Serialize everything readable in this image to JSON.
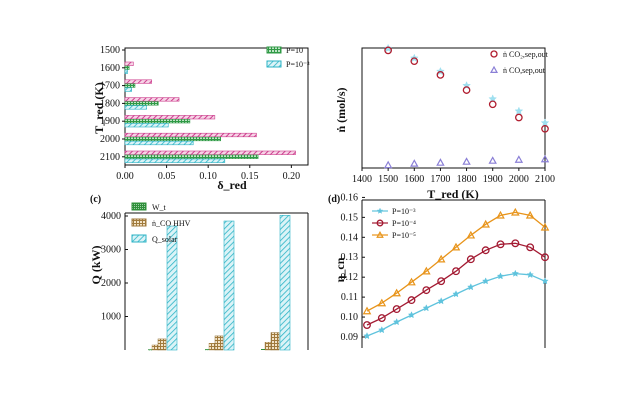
{
  "chart_data": [
    {
      "panel": "",
      "type": "bar",
      "orientation": "horizontal",
      "categories": [
        "1500",
        "1600",
        "1700",
        "1800",
        "1900",
        "2000",
        "2100"
      ],
      "ylabel": "T_red (K)",
      "xlabel": "δ_red",
      "xlim": [
        0,
        0.22
      ],
      "xticks": [
        "0.00",
        "0.05",
        "0.10",
        "0.15",
        "0.20"
      ],
      "colors": {
        "pink": "#cc3f8e",
        "green": "#2f9a45",
        "cyan": "#2bb3c6"
      },
      "series": [
        {
          "name": "P=10",
          "values": [
            0.0,
            0.005,
            0.012,
            0.04,
            0.078,
            0.115,
            0.16
          ]
        },
        {
          "name": "P=10⁻³",
          "values": [
            0.0,
            0.003,
            0.008,
            0.026,
            0.052,
            0.082,
            0.12
          ]
        },
        {
          "values": [
            0.0,
            0.01,
            0.032,
            0.065,
            0.108,
            0.158,
            0.205
          ]
        }
      ],
      "legend_position": "top-right"
    },
    {
      "panel": "",
      "type": "scatter",
      "xlabel": "T_red (K)",
      "ylabel": "ṅ (mol/s)",
      "xlim": [
        1400,
        2100
      ],
      "xticks": [
        "1400",
        "1500",
        "1600",
        "1700",
        "1800",
        "1900",
        "2000",
        "2100"
      ],
      "series": [
        {
          "name": "ṅ CO₂,sep,out",
          "marker": "circle",
          "color": "#b01c2e",
          "x": [
            1500,
            1600,
            1700,
            1800,
            1900,
            2000,
            2100
          ],
          "y": [
            24.0,
            21.8,
            19.0,
            15.9,
            13.0,
            10.3,
            8.0
          ]
        },
        {
          "name": "ṅ CO,sep,out",
          "marker": "triangle",
          "color": "#8a7fd6",
          "x": [
            1500,
            1600,
            1700,
            1800,
            1900,
            2000,
            2100
          ],
          "y": [
            0.6,
            0.9,
            1.1,
            1.3,
            1.5,
            1.7,
            1.8
          ]
        },
        {
          "marker": "star",
          "color": "#9fe0f0",
          "x": [
            1500,
            1600,
            1700,
            1800,
            1900,
            2000,
            2100
          ],
          "y": [
            24.4,
            22.4,
            19.7,
            16.8,
            14.1,
            11.6,
            9.2
          ]
        }
      ],
      "legend_position": "top-right"
    },
    {
      "panel": "(c)",
      "type": "bar",
      "ylabel": "Q (kW)",
      "ylim": [
        0,
        4200
      ],
      "yticks": [
        "1000",
        "2000",
        "3000",
        "4000"
      ],
      "colors": {
        "Wt": "#2f8f3a",
        "nCO": "#a07a3c",
        "Qsolar": "#2bb3c6"
      },
      "series": [
        {
          "name": "W_t",
          "values": [
            20,
            25,
            30
          ]
        },
        {
          "name": "ṅ_CO HHV",
          "values": [
            330,
            420,
            520
          ]
        },
        {
          "name": "Q_solar",
          "values": [
            3700,
            3850,
            4020
          ]
        },
        {
          "values": [
            150,
            200,
            230
          ]
        }
      ],
      "legend_position": "top-left"
    },
    {
      "panel": "(d)",
      "type": "line",
      "ylabel": "η_cn",
      "ylim": [
        0.085,
        0.16
      ],
      "yticks": [
        "0.09",
        "0.10",
        "0.11",
        "0.12",
        "0.13",
        "0.14",
        "0.15",
        "0.16"
      ],
      "x": [
        1500,
        1550,
        1600,
        1650,
        1700,
        1750,
        1800,
        1850,
        1900,
        1950,
        2000,
        2050,
        2100
      ],
      "series": [
        {
          "name": "P=10⁻³",
          "marker": "star",
          "color": "#5fc3dd",
          "y": [
            0.0905,
            0.0935,
            0.0975,
            0.101,
            0.1045,
            0.108,
            0.1115,
            0.115,
            0.118,
            0.1205,
            0.1218,
            0.1212,
            0.118
          ]
        },
        {
          "name": "P=10⁻⁴",
          "marker": "circle",
          "color": "#a31a32",
          "y": [
            0.096,
            0.0995,
            0.104,
            0.1085,
            0.1135,
            0.118,
            0.123,
            0.129,
            0.1335,
            0.1365,
            0.137,
            0.135,
            0.13
          ]
        },
        {
          "name": "P=10⁻⁵",
          "marker": "triangle",
          "color": "#e8941a",
          "y": [
            0.103,
            0.107,
            0.112,
            0.1175,
            0.123,
            0.129,
            0.135,
            0.141,
            0.1465,
            0.151,
            0.1525,
            0.151,
            0.145
          ]
        }
      ],
      "legend_position": "top-left"
    }
  ]
}
